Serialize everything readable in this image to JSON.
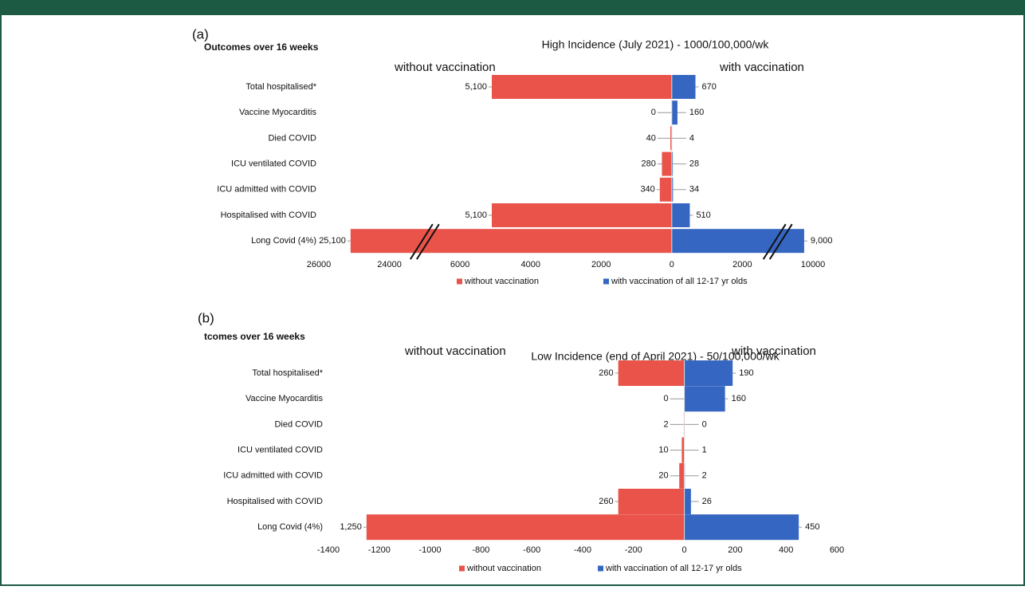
{
  "chart_data": [
    {
      "type": "butterfly-bar",
      "panel_label": "(a)",
      "heading": "Outcomes over 16 weeks",
      "title": "High Incidence (July 2021) - 1000/100,000/wk",
      "left_label": "without vaccination",
      "right_label": "with vaccination",
      "categories": [
        "Total hospitalised*",
        "Vaccine Myocarditis",
        "Died COVID",
        "ICU ventilated COVID",
        "ICU admitted with COVID",
        "Hospitalised with COVID",
        "Long Covid (4%)"
      ],
      "series": [
        {
          "name": "without vaccination",
          "color": "#e9534a",
          "direction": "left",
          "values": [
            5100,
            0,
            40,
            280,
            340,
            5100,
            25100
          ],
          "value_labels": [
            "5,100",
            "0",
            "40",
            "280",
            "340",
            "5,100",
            "25,100"
          ]
        },
        {
          "name": "with vaccination of all 12-17 yr olds",
          "color": "#3566c1",
          "direction": "right",
          "values": [
            670,
            160,
            4,
            28,
            34,
            510,
            9000
          ],
          "value_labels": [
            "670",
            "160",
            "4",
            "28",
            "34",
            "510",
            "9,000"
          ]
        }
      ],
      "xlim": [
        -26000,
        10000
      ],
      "axis_break": true,
      "xticks": [
        {
          "value": -26000,
          "label": "26000"
        },
        {
          "value": -24000,
          "label": "24000"
        },
        {
          "value": -6000,
          "label": "6000"
        },
        {
          "value": -4000,
          "label": "4000"
        },
        {
          "value": -2000,
          "label": "2000"
        },
        0,
        2000,
        10000
      ]
    },
    {
      "type": "butterfly-bar",
      "panel_label": "(b)",
      "heading": "tcomes over 16 weeks",
      "title": "Low Incidence (end of April 2021) - 50/100,000/wk",
      "left_label": "without vaccination",
      "right_label": "with vaccination",
      "categories": [
        "Total hospitalised*",
        "Vaccine Myocarditis",
        "Died COVID",
        "ICU ventilated COVID",
        "ICU admitted with COVID",
        "Hospitalised with COVID",
        "Long Covid (4%)"
      ],
      "series": [
        {
          "name": "without vaccination",
          "color": "#e9534a",
          "direction": "left",
          "values": [
            260,
            0,
            2,
            10,
            20,
            260,
            1250
          ],
          "value_labels": [
            "260",
            "0",
            "2",
            "10",
            "20",
            "260",
            "1,250"
          ]
        },
        {
          "name": "with vaccination of all 12-17 yr olds",
          "color": "#3566c1",
          "direction": "right",
          "values": [
            190,
            160,
            0,
            1,
            2,
            26,
            450
          ],
          "value_labels": [
            "190",
            "160",
            "0",
            "1",
            "2",
            "26",
            "450"
          ]
        }
      ],
      "xlim": [
        -1400,
        600
      ],
      "axis_break": false,
      "xticks": [
        -1400,
        -1200,
        -1000,
        -800,
        -600,
        -400,
        -200,
        0,
        200,
        400,
        600
      ]
    }
  ]
}
